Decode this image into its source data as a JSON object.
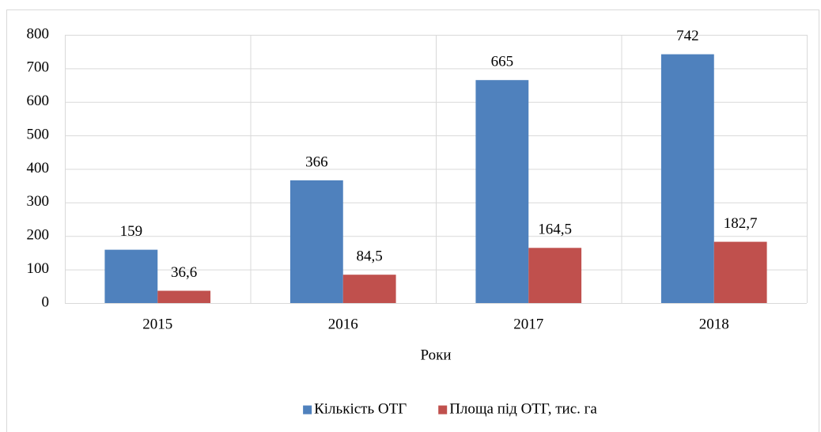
{
  "chart_data": {
    "type": "bar",
    "x_label": "Роки",
    "categories": [
      "2015",
      "2016",
      "2017",
      "2018"
    ],
    "series": [
      {
        "name": "Кількість ОТГ",
        "color": "#4f81bd",
        "values": [
          159,
          366,
          665,
          742
        ]
      },
      {
        "name": "Площа під ОТГ, тис. га",
        "color": "#c0504d",
        "values": [
          36.6,
          84.5,
          164.5,
          182.7
        ],
        "value_labels": [
          "36,6",
          "84,5",
          "164,5",
          "182,7"
        ]
      }
    ],
    "ylim": [
      0,
      800
    ],
    "yticks": [
      0,
      100,
      200,
      300,
      400,
      500,
      600,
      700,
      800
    ],
    "grid": true,
    "legend": "bottom"
  }
}
